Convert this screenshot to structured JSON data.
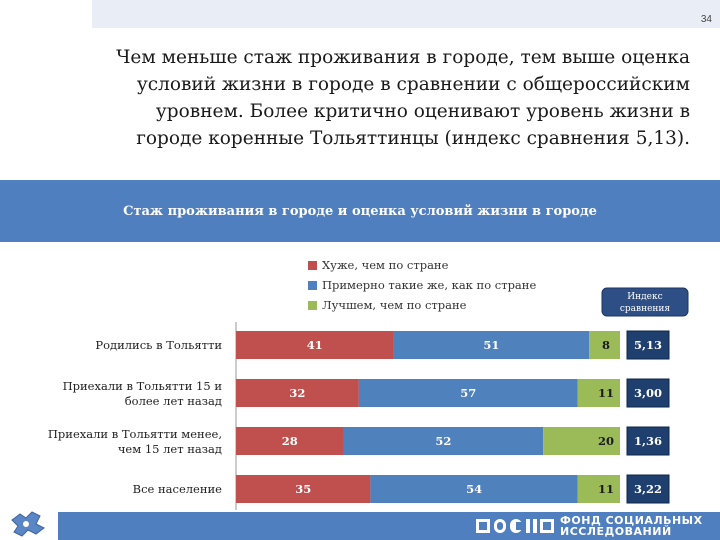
{
  "page_number": "34",
  "headline_lines": [
    "Чем меньше стаж проживания в городе, тем выше оценка",
    "условий жизни в городе в сравнении с общероссийским",
    "уровнем. Более критично оценивают уровень жизни в",
    "городе коренные Тольяттинцы (индекс сравнения 5,13)."
  ],
  "org_lines": [
    "ФОНД СОЦИАЛЬНЫХ",
    "ИССЛЕДОВАНИЙ"
  ],
  "colors": {
    "worse": "#c0504d",
    "same": "#4f81bd",
    "better": "#9bbb59",
    "index": "#1f3f6f",
    "band": "#4f7fbe"
  },
  "chart_data": {
    "type": "bar",
    "orientation": "horizontal",
    "stacked": true,
    "title": "Стаж проживания в городе и оценка условий жизни в городе",
    "categories": [
      [
        "Родились в Тольятти"
      ],
      [
        "Приехали в Тольятти 15 и",
        "более лет назад"
      ],
      [
        "Приехали в Тольятти менее,",
        "чем 15 лет назад"
      ],
      [
        "Все население"
      ]
    ],
    "series": [
      {
        "name": "Хуже, чем по стране",
        "values": [
          41,
          32,
          28,
          35
        ]
      },
      {
        "name": "Примерно такие же, как по странe",
        "values": [
          51,
          57,
          52,
          54
        ]
      },
      {
        "name": "Лучшем, чем по стране",
        "values": [
          8,
          11,
          20,
          11
        ]
      }
    ],
    "index_label": "Индекс сравнения",
    "index_values": [
      "5,13",
      "3,00",
      "1,36",
      "3,22"
    ],
    "legend_position": "top"
  }
}
